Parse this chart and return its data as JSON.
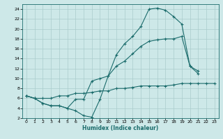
{
  "xlabel": "Humidex (Indice chaleur)",
  "bg_color": "#cde8e8",
  "grid_color": "#aacccc",
  "line_color": "#1a6b6b",
  "xlim": [
    -0.5,
    23.5
  ],
  "ylim": [
    2,
    25
  ],
  "xticks": [
    0,
    1,
    2,
    3,
    4,
    5,
    6,
    7,
    8,
    9,
    10,
    11,
    12,
    13,
    14,
    15,
    16,
    17,
    18,
    19,
    20,
    21,
    22,
    23
  ],
  "yticks": [
    2,
    4,
    6,
    8,
    10,
    12,
    14,
    16,
    18,
    20,
    22,
    24
  ],
  "line1_x": [
    0,
    1,
    2,
    3,
    4,
    5,
    6,
    7,
    8,
    9,
    10,
    11,
    12,
    13,
    14,
    15,
    16,
    17,
    18,
    19,
    20,
    21,
    22,
    23
  ],
  "line1_y": [
    6.5,
    6.0,
    5.0,
    4.5,
    4.5,
    4.0,
    3.5,
    2.5,
    2.2,
    5.8,
    10.5,
    14.8,
    17.0,
    18.5,
    20.5,
    24.0,
    24.2,
    23.8,
    22.5,
    21.0,
    12.5,
    11.0,
    null,
    null
  ],
  "line2_x": [
    0,
    1,
    2,
    3,
    4,
    5,
    6,
    7,
    8,
    9,
    10,
    11,
    12,
    13,
    14,
    15,
    16,
    17,
    18,
    19,
    20,
    21,
    22,
    23
  ],
  "line2_y": [
    6.5,
    6.0,
    5.0,
    4.5,
    4.5,
    4.0,
    5.8,
    5.8,
    9.5,
    10.0,
    10.5,
    12.5,
    13.5,
    15.0,
    16.5,
    17.5,
    17.8,
    18.0,
    18.0,
    18.5,
    12.5,
    11.5,
    null,
    null
  ],
  "line3_x": [
    0,
    1,
    2,
    3,
    4,
    5,
    6,
    7,
    8,
    9,
    10,
    11,
    12,
    13,
    14,
    15,
    16,
    17,
    18,
    19,
    20,
    21,
    22,
    23
  ],
  "line3_y": [
    6.5,
    6.0,
    6.0,
    6.0,
    6.5,
    6.5,
    7.0,
    7.0,
    7.2,
    7.5,
    7.5,
    8.0,
    8.0,
    8.2,
    8.5,
    8.5,
    8.5,
    8.5,
    8.7,
    9.0,
    9.0,
    9.0,
    9.0,
    9.0
  ]
}
